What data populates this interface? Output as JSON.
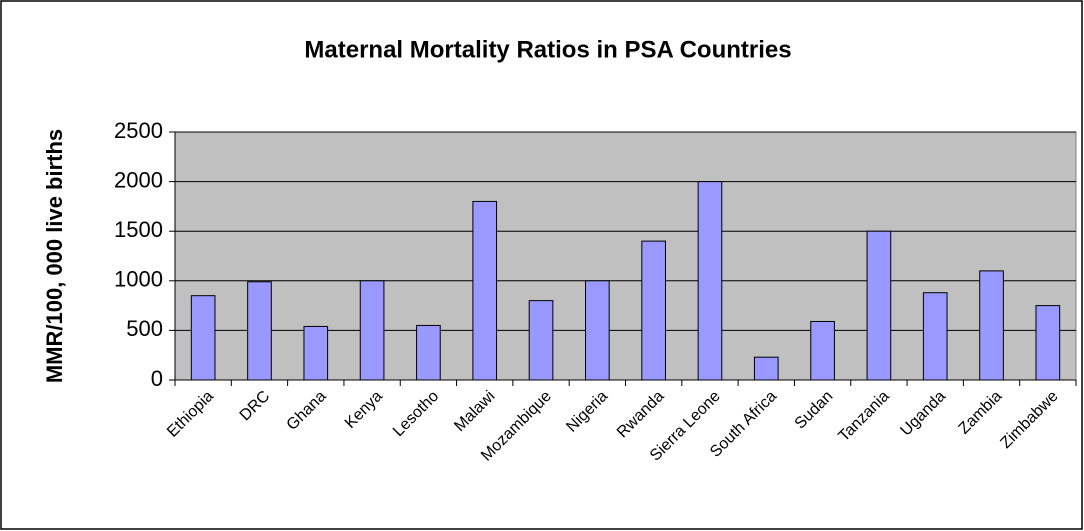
{
  "chart_data": {
    "type": "bar",
    "title": "Maternal Mortality Ratios in PSA Countries",
    "y_label": "MMR/100, 000 live births",
    "categories": [
      "Ethiopia",
      "DRC",
      "Ghana",
      "Kenya",
      "Lesotho",
      "Malawi",
      "Mozambique",
      "Nigeria",
      "Rwanda",
      "Sierra Leone",
      "South Africa",
      "Sudan",
      "Tanzania",
      "Uganda",
      "Zambia",
      "Zimbabwe"
    ],
    "values": [
      850,
      990,
      540,
      1000,
      550,
      1800,
      800,
      1000,
      1400,
      2000,
      230,
      590,
      1500,
      880,
      1100,
      750
    ],
    "color": "#9999ff",
    "plot_background": "#c0c0c0",
    "ylim": [
      0,
      2500
    ],
    "yticks": [
      0,
      500,
      1000,
      1500,
      2000,
      2500
    ],
    "grid": true
  }
}
